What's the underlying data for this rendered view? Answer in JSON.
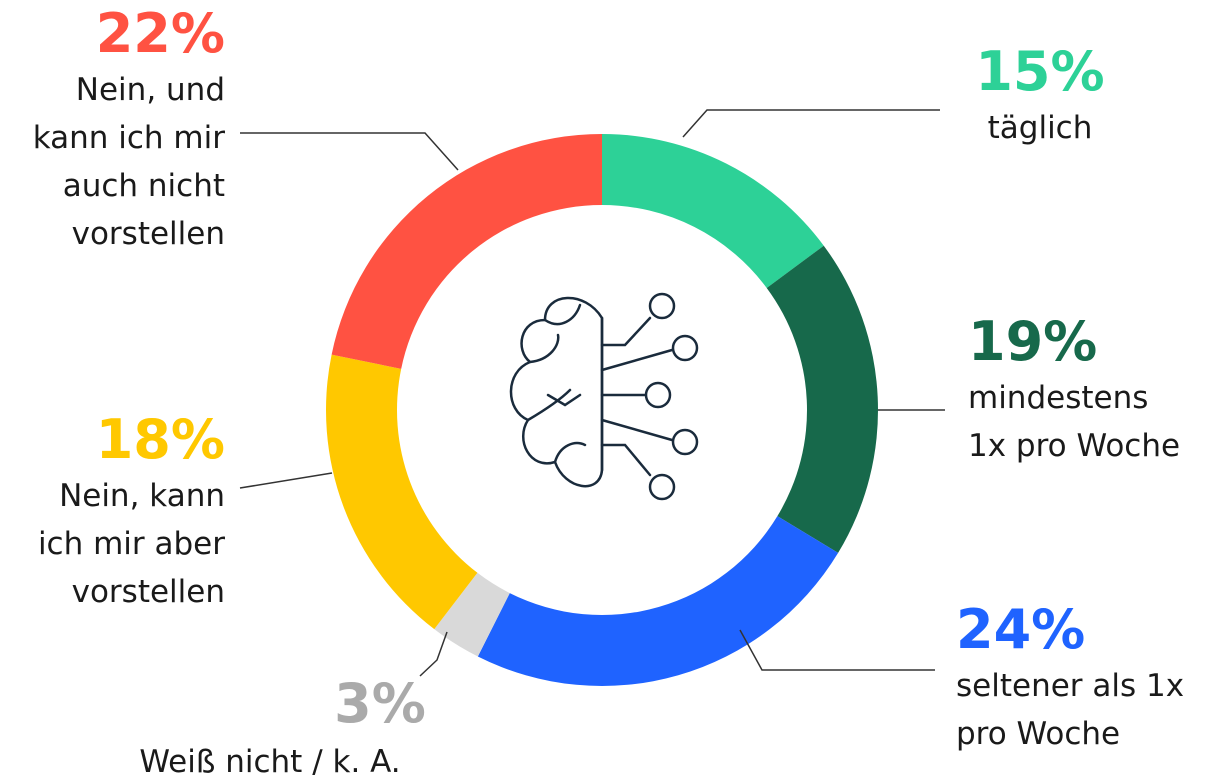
{
  "chart_data": {
    "type": "donut",
    "categories": [
      "täglich",
      "mindestens\n1x pro Woche",
      "seltener als 1x\npro Woche",
      "Weiß nicht / k. A.",
      "Nein, kann\nich mir aber\nvorstellen",
      "Nein, und\nkann ich mir\nauch nicht\nvorstellen"
    ],
    "values": [
      15,
      19,
      24,
      3,
      18,
      22
    ],
    "value_labels": [
      "15%",
      "19%",
      "24%",
      "3%",
      "18%",
      "22%"
    ],
    "colors": [
      "#2dd197",
      "#17694b",
      "#1f63ff",
      "#d9d9d9",
      "#ffc800",
      "#ff5242"
    ],
    "label_colors": [
      "#2dd197",
      "#17694b",
      "#1f63ff",
      "#aaaaaa",
      "#ffc800",
      "#ff5242"
    ]
  }
}
